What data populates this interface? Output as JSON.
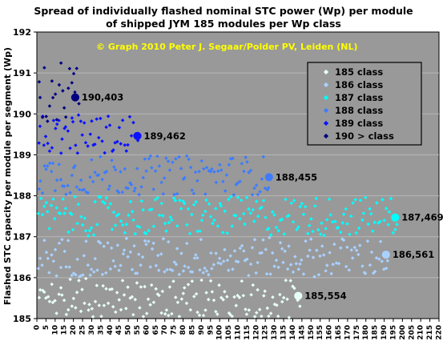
{
  "chart_data": {
    "type": "scatter",
    "title": [
      "Spread of individually flashed nominal STC power (Wp) per module",
      "of shipped JYM 185 modules per Wp class"
    ],
    "copyright": "© Graph 2010 Peter J. Segaar/Polder PV, Leiden (NL)",
    "xlabel": "",
    "ylabel": "Flashed STC capacity per module per segment (Wp)",
    "xlim": [
      0,
      220
    ],
    "ylim": [
      185,
      192
    ],
    "x_ticks": [
      0,
      5,
      10,
      15,
      20,
      25,
      30,
      35,
      40,
      45,
      50,
      55,
      60,
      65,
      70,
      75,
      80,
      85,
      90,
      95,
      100,
      105,
      110,
      115,
      120,
      125,
      130,
      135,
      140,
      145,
      150,
      155,
      160,
      165,
      170,
      175,
      180,
      185,
      190,
      195,
      200,
      205,
      210,
      215,
      220
    ],
    "y_ticks": [
      185,
      186,
      187,
      188,
      189,
      190,
      191,
      192
    ],
    "grid": "horizontal",
    "legend_position": "top-right",
    "colors": {
      "background": "#999999",
      "grid": "#b8b8b8",
      "copyright": "#ffff00"
    },
    "series": [
      {
        "name": "185 class",
        "color": "#e8fff8",
        "count": 144,
        "y_range": [
          185.0,
          186.0
        ],
        "mean": 185.554
      },
      {
        "name": "186 class",
        "color": "#a9d1ff",
        "count": 192,
        "y_range": [
          186.0,
          187.0
        ],
        "mean": 186.561
      },
      {
        "name": "187 class",
        "color": "#00ffff",
        "count": 197,
        "y_range": [
          187.0,
          188.0
        ],
        "mean": 187.469
      },
      {
        "name": "188 class",
        "color": "#3d7cff",
        "count": 127,
        "y_range": [
          188.0,
          189.0
        ],
        "mean": 188.455
      },
      {
        "name": "189 class",
        "color": "#0a12ff",
        "count": 55,
        "y_range": [
          189.0,
          190.0
        ],
        "mean": 189.462
      },
      {
        "name": "190 > class",
        "color": "#000080",
        "count": 23,
        "y_range": [
          189.8,
          191.4
        ],
        "mean": 190.403
      }
    ],
    "annotations": [
      {
        "text": "185,554",
        "x": 143,
        "y": 185.554
      },
      {
        "text": "186,561",
        "x": 191,
        "y": 186.561
      },
      {
        "text": "187,469",
        "x": 196,
        "y": 187.469
      },
      {
        "text": "188,455",
        "x": 127,
        "y": 188.455
      },
      {
        "text": "189,462",
        "x": 55,
        "y": 189.462
      },
      {
        "text": "190,403",
        "x": 21,
        "y": 190.403
      }
    ]
  }
}
